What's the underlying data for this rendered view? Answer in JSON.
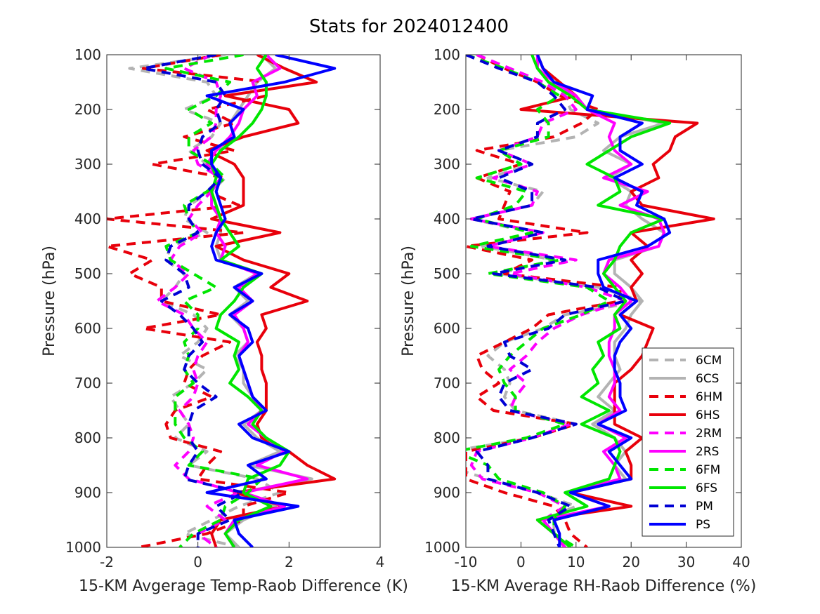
{
  "figure": {
    "title": "Stats for 2024012400"
  },
  "chart_data": [
    {
      "type": "line",
      "orientation": "profile (x = value, y = pressure, y reversed)",
      "xlabel": "15-KM Avgerage Temp-Raob Difference (K)",
      "ylabel": "Pressure (hPa)",
      "xlim": [
        -2,
        4
      ],
      "ylim": [
        1000,
        100
      ],
      "xticks": [
        "-2",
        "0",
        "2",
        "4"
      ],
      "yticks": [
        "100",
        "200",
        "300",
        "400",
        "500",
        "600",
        "700",
        "800",
        "900",
        "1000"
      ],
      "levels": [
        100,
        125,
        150,
        175,
        200,
        225,
        250,
        275,
        300,
        325,
        350,
        375,
        400,
        425,
        450,
        475,
        500,
        525,
        550,
        575,
        600,
        625,
        650,
        675,
        700,
        725,
        750,
        775,
        800,
        825,
        850,
        875,
        900,
        925,
        950,
        975,
        1000
      ],
      "series": [
        {
          "name": "6CM",
          "color": "#b3b3b3",
          "dash": true,
          "values": [
            0.6,
            -1.5,
            0.2,
            0.4,
            -0.3,
            0.5,
            0.3,
            -0.2,
            0.2,
            0.6,
            0.3,
            -0.2,
            -0.3,
            0.2,
            -0.6,
            -0.7,
            -0.3,
            -0.5,
            -0.8,
            -0.1,
            0.2,
            0.0,
            -0.4,
            0.2,
            -0.1,
            -0.6,
            -0.4,
            -0.2,
            -0.5,
            0.2,
            -0.2,
            1.3,
            1.8,
            0.9,
            0.3,
            -0.3,
            0.9
          ]
        },
        {
          "name": "6CS",
          "color": "#b3b3b3",
          "dash": false,
          "values": [
            1.4,
            1.7,
            1.3,
            1.1,
            0.9,
            0.7,
            0.8,
            0.4,
            0.2,
            0.5,
            0.3,
            0.4,
            0.5,
            0.5,
            0.4,
            0.5,
            1.3,
            0.8,
            1.1,
            0.7,
            1.0,
            1.1,
            0.8,
            1.0,
            1.0,
            1.2,
            1.4,
            1.0,
            1.3,
            1.8,
            1.1,
            2.5,
            0.9,
            1.7,
            1.0,
            0.6,
            0.9
          ]
        },
        {
          "name": "6HM",
          "color": "#e8000b",
          "dash": true,
          "values": [
            0.5,
            -1.2,
            1.5,
            1.5,
            0.2,
            0.8,
            -0.3,
            0.8,
            -1.0,
            0.6,
            0.2,
            0.9,
            -2.0,
            1.0,
            -2.0,
            -1.0,
            -1.5,
            -0.8,
            -0.8,
            0.5,
            -1.2,
            0.7,
            0.1,
            -0.2,
            -0.3,
            0.3,
            -0.5,
            -0.7,
            -0.6,
            0.5,
            0.2,
            0.0,
            2.0,
            1.0,
            1.0,
            0.2,
            -1.3
          ]
        },
        {
          "name": "6HS",
          "color": "#e8000b",
          "dash": false,
          "values": [
            1.3,
            1.9,
            2.6,
            0.6,
            2.0,
            2.2,
            1.0,
            0.2,
            0.8,
            1.0,
            1.0,
            1.0,
            0.3,
            1.8,
            0.4,
            1.0,
            2.0,
            1.6,
            2.4,
            1.4,
            1.5,
            1.3,
            1.4,
            1.4,
            1.5,
            1.5,
            1.5,
            1.3,
            1.4,
            2.0,
            2.4,
            3.0,
            0.8,
            1.9,
            0.5,
            0.3,
            0.4
          ]
        },
        {
          "name": "2RM",
          "color": "#ff00ff",
          "dash": true,
          "values": [
            0.3,
            -0.3,
            0.4,
            0.5,
            0.4,
            0.4,
            0.3,
            -0.1,
            0.0,
            0.5,
            0.3,
            0.0,
            -0.2,
            0.1,
            -0.4,
            -0.6,
            -0.2,
            -0.5,
            -0.9,
            -0.3,
            -0.1,
            0.2,
            0.0,
            -0.1,
            0.0,
            -0.1,
            -0.4,
            -0.2,
            -0.1,
            -0.2,
            -0.5,
            -0.2,
            0.9,
            0.2,
            0.6,
            0.0,
            0.4
          ]
        },
        {
          "name": "2RS",
          "color": "#ff00ff",
          "dash": false,
          "values": [
            1.5,
            1.8,
            1.2,
            1.3,
            1.0,
            0.9,
            0.7,
            0.4,
            0.2,
            0.5,
            0.3,
            0.3,
            0.5,
            0.4,
            0.6,
            0.5,
            1.3,
            0.9,
            1.2,
            0.8,
            1.0,
            1.1,
            0.9,
            1.0,
            1.1,
            1.2,
            1.4,
            1.1,
            1.5,
            1.9,
            1.3,
            2.4,
            1.0,
            1.9,
            0.8,
            0.6,
            0.8
          ]
        },
        {
          "name": "6FM",
          "color": "#00e600",
          "dash": true,
          "values": [
            1.0,
            -0.7,
            0.7,
            0.4,
            -0.2,
            0.3,
            -0.2,
            -0.2,
            0.3,
            0.6,
            0.2,
            -0.3,
            -0.2,
            0.0,
            -0.7,
            -0.6,
            -0.1,
            0.4,
            -0.3,
            0.0,
            0.0,
            -0.3,
            -0.2,
            -0.3,
            -0.1,
            -0.5,
            -0.5,
            -0.5,
            -0.3,
            0.1,
            -0.2,
            1.4,
            1.1,
            0.6,
            0.5,
            -0.1,
            -0.4
          ]
        },
        {
          "name": "6FS",
          "color": "#00e600",
          "dash": false,
          "values": [
            1.5,
            1.3,
            1.5,
            1.5,
            1.4,
            1.2,
            0.9,
            0.5,
            0.3,
            0.4,
            0.3,
            0.4,
            0.5,
            0.7,
            0.9,
            0.5,
            1.4,
            1.0,
            0.8,
            0.5,
            0.4,
            0.9,
            0.8,
            0.9,
            0.7,
            1.1,
            1.4,
            1.2,
            1.5,
            2.0,
            1.8,
            1.1,
            1.0,
            1.6,
            0.9,
            0.6,
            0.8
          ]
        },
        {
          "name": "PM",
          "color": "#0000d4",
          "dash": true,
          "values": [
            0.4,
            -1.2,
            0.4,
            0.6,
            0.4,
            0.5,
            0.1,
            0.0,
            0.1,
            0.5,
            0.2,
            -0.2,
            -0.2,
            0.0,
            -0.6,
            -0.7,
            -0.3,
            -0.2,
            -0.8,
            -0.4,
            -0.1,
            0.1,
            -0.2,
            -0.3,
            0.0,
            0.4,
            -0.1,
            -0.2,
            -0.2,
            0.0,
            -0.2,
            -0.3,
            1.0,
            0.4,
            0.7,
            0.0,
            0.0
          ]
        },
        {
          "name": "PS",
          "color": "#0000ff",
          "dash": false,
          "values": [
            1.7,
            3.0,
            1.9,
            0.2,
            1.0,
            0.7,
            0.8,
            0.3,
            0.3,
            0.5,
            0.4,
            0.5,
            0.6,
            0.4,
            0.3,
            0.4,
            1.4,
            0.8,
            1.2,
            0.7,
            1.1,
            1.2,
            0.9,
            1.0,
            1.1,
            1.2,
            1.5,
            0.9,
            1.2,
            2.0,
            1.1,
            1.5,
            0.2,
            2.2,
            0.8,
            0.9,
            1.2
          ]
        }
      ]
    },
    {
      "type": "line",
      "orientation": "profile (x = value, y = pressure, y reversed)",
      "xlabel": "15-KM Average RH-Raob Difference (%)",
      "ylabel": "Pressure (hPa)",
      "xlim": [
        -10,
        40
      ],
      "ylim": [
        1000,
        100
      ],
      "xticks": [
        "-10",
        "0",
        "10",
        "20",
        "30",
        "40"
      ],
      "yticks": [
        "100",
        "200",
        "300",
        "400",
        "500",
        "600",
        "700",
        "800",
        "900",
        "1000"
      ],
      "levels": [
        100,
        125,
        150,
        175,
        200,
        225,
        250,
        275,
        300,
        325,
        350,
        375,
        400,
        425,
        450,
        475,
        500,
        525,
        550,
        575,
        600,
        625,
        650,
        675,
        700,
        725,
        750,
        775,
        800,
        825,
        850,
        875,
        900,
        925,
        950,
        975,
        1000
      ],
      "series": [
        {
          "name": "6CM",
          "color": "#b3b3b3",
          "dash": true,
          "values": [
            -8,
            -2,
            4,
            8,
            9,
            14,
            10,
            -4,
            2,
            -6,
            4,
            2,
            -9,
            2,
            -7,
            6,
            -4,
            14,
            22,
            8,
            4,
            -3,
            -6,
            -3,
            -2,
            -3,
            -1,
            10,
            2,
            -13,
            -14,
            -6,
            3,
            10,
            4,
            6,
            8
          ]
        },
        {
          "name": "6CS",
          "color": "#b3b3b3",
          "dash": false,
          "values": [
            3,
            3,
            5,
            10,
            12,
            26,
            18,
            15,
            20,
            16,
            20,
            19,
            22,
            26,
            25,
            17,
            17,
            20,
            22,
            20,
            19,
            17,
            17,
            18,
            16,
            14,
            17,
            13,
            17,
            19,
            17,
            19,
            9,
            16,
            6,
            6,
            8
          ]
        },
        {
          "name": "6HM",
          "color": "#e8000b",
          "dash": true,
          "values": [
            -8,
            -3,
            3,
            7,
            14,
            11,
            6,
            -8,
            0,
            -8,
            -2,
            -3,
            -4,
            12,
            -10,
            2,
            -3,
            18,
            18,
            5,
            2,
            -3,
            -8,
            -7,
            -4,
            -8,
            -5,
            10,
            2,
            -10,
            -10,
            -10,
            -3,
            6,
            8,
            9,
            12
          ]
        },
        {
          "name": "6HS",
          "color": "#e8000b",
          "dash": false,
          "values": [
            3,
            4,
            7,
            10,
            0,
            32,
            28,
            27,
            24,
            25,
            20,
            22,
            35,
            20,
            23,
            20,
            22,
            20,
            21,
            18,
            24,
            23,
            22,
            20,
            17,
            17,
            17,
            17,
            22,
            19,
            20,
            20,
            9,
            20,
            3,
            6,
            8
          ]
        },
        {
          "name": "2RM",
          "color": "#ff00ff",
          "dash": true,
          "values": [
            -8,
            -2,
            4,
            8,
            10,
            4,
            3,
            -4,
            2,
            -5,
            3,
            2,
            -9,
            4,
            -6,
            10,
            -2,
            12,
            19,
            11,
            6,
            3,
            1,
            -2,
            1,
            -1,
            -2,
            9,
            2,
            -8,
            -9,
            -7,
            3,
            8,
            4,
            6,
            8
          ]
        },
        {
          "name": "2RS",
          "color": "#ff00ff",
          "dash": false,
          "values": [
            3,
            3,
            6,
            10,
            12,
            17,
            16,
            17,
            20,
            15,
            23,
            18,
            25,
            26,
            25,
            16,
            15,
            18,
            20,
            17,
            17,
            16,
            16,
            17,
            17,
            16,
            18,
            14,
            19,
            15,
            17,
            18,
            9,
            16,
            4,
            6,
            8
          ]
        },
        {
          "name": "6FM",
          "color": "#00e600",
          "dash": true,
          "values": [
            -10,
            -3,
            3,
            7,
            3,
            5,
            5,
            -4,
            0,
            -8,
            1,
            -1,
            -8,
            2,
            -9,
            7,
            -6,
            12,
            16,
            11,
            4,
            1,
            -2,
            -4,
            -3,
            -1,
            -1,
            8,
            1,
            -12,
            -6,
            -4,
            4,
            8,
            6,
            6,
            10
          ]
        },
        {
          "name": "6FS",
          "color": "#00e600",
          "dash": false,
          "values": [
            2,
            3,
            5,
            9,
            12,
            27,
            20,
            16,
            12,
            17,
            18,
            14,
            26,
            20,
            18,
            17,
            15,
            17,
            19,
            17,
            18,
            14,
            15,
            13,
            14,
            11,
            16,
            11,
            17,
            18,
            17,
            16,
            8,
            12,
            3,
            6,
            9
          ]
        },
        {
          "name": "PM",
          "color": "#0000d4",
          "dash": true,
          "values": [
            -10,
            -4,
            3,
            6,
            8,
            3,
            3,
            -4,
            2,
            -4,
            2,
            2,
            -9,
            4,
            -6,
            8,
            -5,
            14,
            19,
            8,
            5,
            -3,
            -2,
            2,
            -3,
            -4,
            -2,
            10,
            2,
            -8,
            -6,
            -6,
            3,
            9,
            5,
            6,
            7
          ]
        },
        {
          "name": "PS",
          "color": "#0000ff",
          "dash": false,
          "values": [
            3,
            4,
            6,
            13,
            12,
            22,
            18,
            18,
            22,
            17,
            22,
            21,
            26,
            27,
            23,
            14,
            14,
            15,
            21,
            18,
            20,
            18,
            17,
            17,
            18,
            18,
            19,
            14,
            20,
            16,
            18,
            20,
            9,
            16,
            6,
            7,
            7
          ]
        }
      ],
      "legend": {
        "location": "lower right",
        "entries": [
          "6CM",
          "6CS",
          "6HM",
          "6HS",
          "2RM",
          "2RS",
          "6FM",
          "6FS",
          "PM",
          "PS"
        ]
      }
    }
  ]
}
